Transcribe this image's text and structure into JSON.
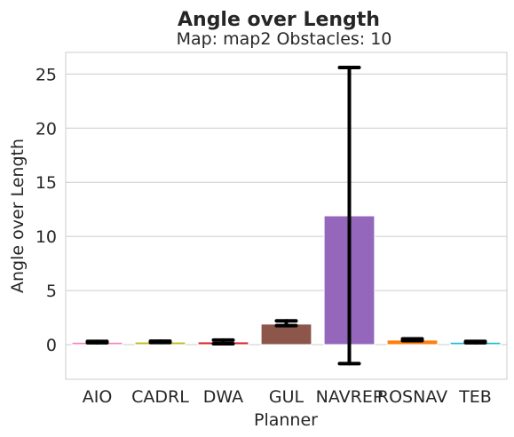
{
  "chart_data": {
    "type": "bar",
    "title": "Angle over Length",
    "subtitle": "Map: map2 Obstacles: 10",
    "xlabel": "Planner",
    "ylabel": "Angle over Length",
    "categories": [
      "AIO",
      "CADRL",
      "DWA",
      "GUL",
      "NAVREP",
      "ROSNAV",
      "TEB"
    ],
    "values": [
      0.22,
      0.24,
      0.25,
      1.9,
      11.9,
      0.42,
      0.22
    ],
    "error_low": [
      0.18,
      0.2,
      0.08,
      1.75,
      -1.75,
      0.37,
      0.17
    ],
    "error_high": [
      0.3,
      0.32,
      0.42,
      2.2,
      25.6,
      0.53,
      0.3
    ],
    "colors": [
      "#f781bf",
      "#bcbd22",
      "#d62728",
      "#8c564b",
      "#9467bd",
      "#ff7f0e",
      "#17becf"
    ],
    "yticks": [
      0,
      5,
      10,
      15,
      20,
      25
    ],
    "ylim": [
      -3.2,
      27.0
    ],
    "grid": "horizontal",
    "legend": "none"
  }
}
